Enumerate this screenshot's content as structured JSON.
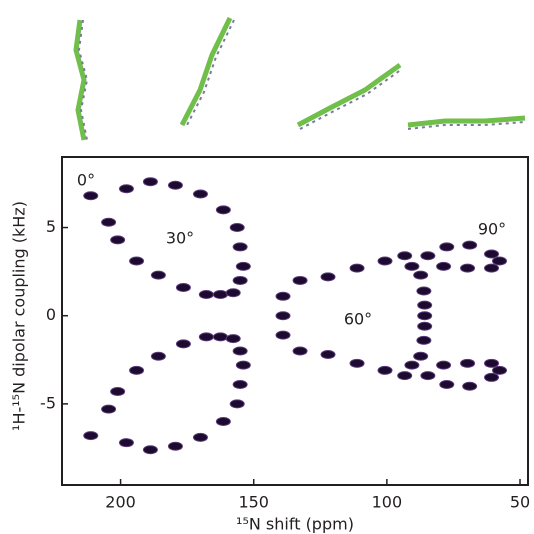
{
  "chart_data": {
    "type": "scatter",
    "xlabel": "¹⁵N shift (ppm)",
    "ylabel": "¹H-¹⁵N dipolar coupling (kHz)",
    "annotations": [
      "0°",
      "30°",
      "60°",
      "90°"
    ],
    "x": [
      211.2,
      204.5,
      201.1,
      194.0,
      185.8,
      176.4,
      167.8,
      162.5,
      157.7,
      155.1,
      153.9,
      155.1,
      156.2,
      161.4,
      170.0,
      179.4,
      188.8,
      197.8,
      211.2,
      204.5,
      201.1,
      194.0,
      185.8,
      176.4,
      167.8,
      162.5,
      157.7,
      155.1,
      153.9,
      155.1,
      156.2,
      161.4,
      170.0,
      179.4,
      188.8,
      197.8,
      139.0,
      132.6,
      122.1,
      111.2,
      100.7,
      93.3,
      90.6,
      87.3,
      86.1,
      85.8,
      139.0,
      85.8,
      139.0,
      132.6,
      122.1,
      111.2,
      100.7,
      93.3,
      90.6,
      87.3,
      86.1,
      85.8,
      84.6,
      77.5,
      68.9,
      60.7,
      57.7,
      60.7,
      69.7,
      78.7,
      84.6,
      77.5,
      68.9,
      60.7,
      57.7,
      60.7,
      69.7,
      78.7
    ],
    "y": [
      6.8,
      5.3,
      4.3,
      3.1,
      2.3,
      1.6,
      1.2,
      1.2,
      1.3,
      2.0,
      2.8,
      3.9,
      5.0,
      6.0,
      6.9,
      7.4,
      7.6,
      7.2,
      -6.8,
      -5.3,
      -4.3,
      -3.1,
      -2.3,
      -1.6,
      -1.2,
      -1.2,
      -1.3,
      -2.0,
      -2.8,
      -3.9,
      -5.0,
      -6.0,
      -6.9,
      -7.4,
      -7.6,
      -7.2,
      1.1,
      2.0,
      2.2,
      2.7,
      3.1,
      3.4,
      2.8,
      2.3,
      1.4,
      0.6,
      0,
      0,
      -1.1,
      -2.0,
      -2.2,
      -2.7,
      -3.1,
      -3.4,
      -2.8,
      -2.3,
      -1.4,
      -0.6,
      3.4,
      3.9,
      4.0,
      3.5,
      3.1,
      2.7,
      2.7,
      2.8,
      -3.4,
      -3.9,
      -4.0,
      -3.5,
      -3.1,
      -2.7,
      -2.7,
      -2.8
    ],
    "color": "#1c0b2e",
    "xlim": [
      222,
      47
    ],
    "xticks": [
      200,
      150,
      100,
      50
    ],
    "ylim": [
      -9.6,
      9.0
    ],
    "yticks": [
      5,
      0,
      -5
    ]
  }
}
